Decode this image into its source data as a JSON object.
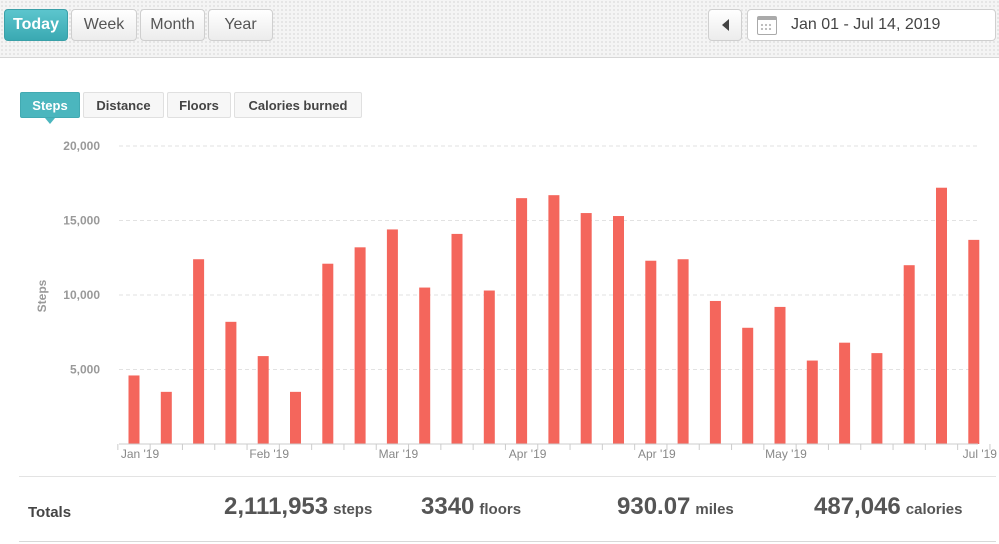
{
  "range_tabs": [
    {
      "label": "Today",
      "active": true
    },
    {
      "label": "Week",
      "active": false
    },
    {
      "label": "Month",
      "active": false
    },
    {
      "label": "Year",
      "active": false
    }
  ],
  "date_range": {
    "text": "Jan 01 - Jul 14, 2019",
    "icon": "calendar-icon",
    "prev_icon": "triangle-left-icon"
  },
  "metric_tabs": [
    {
      "label": "Steps",
      "active": true
    },
    {
      "label": "Distance",
      "active": false
    },
    {
      "label": "Floors",
      "active": false
    },
    {
      "label": "Calories burned",
      "active": false
    }
  ],
  "colors": {
    "accent": "#4bb6be",
    "bar": "#f4665c",
    "grid": "#e2e2e2"
  },
  "chart_data": {
    "type": "bar",
    "title": "",
    "ylabel": "Steps",
    "xlabel": "",
    "ylim": [
      0,
      20000
    ],
    "yticks": [
      5000,
      10000,
      15000,
      20000
    ],
    "ytick_labels": [
      "5,000",
      "10,000",
      "15,000",
      "20,000"
    ],
    "grid": true,
    "x_tick_labels": [
      {
        "label": "Jan '19",
        "index": 0
      },
      {
        "label": "Feb '19",
        "index": 4
      },
      {
        "label": "Mar '19",
        "index": 8
      },
      {
        "label": "Apr '19",
        "index": 12
      },
      {
        "label": "Apr '19",
        "index": 16
      },
      {
        "label": "May '19",
        "index": 20
      },
      {
        "label": "Jul '19",
        "index": 26
      }
    ],
    "values": [
      4600,
      3500,
      12400,
      8200,
      5900,
      3500,
      12100,
      13200,
      14400,
      10500,
      14100,
      10300,
      16500,
      16700,
      15500,
      15300,
      12300,
      12400,
      9600,
      7800,
      9200,
      5600,
      6800,
      6100,
      12000,
      17200,
      13700
    ]
  },
  "totals": {
    "label": "Totals",
    "steps": {
      "value": "2,111,953",
      "unit": "steps"
    },
    "floors": {
      "value": "3340",
      "unit": "floors"
    },
    "miles": {
      "value": "930.07",
      "unit": "miles"
    },
    "calories": {
      "value": "487,046",
      "unit": "calories"
    }
  }
}
